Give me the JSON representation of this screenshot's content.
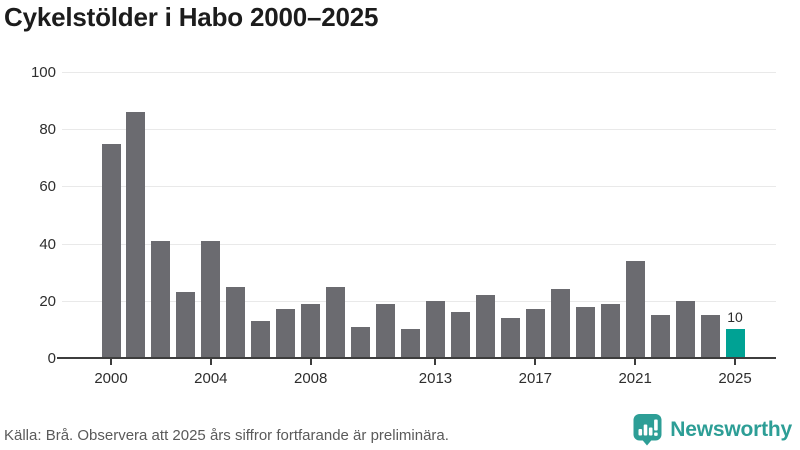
{
  "title": "Cykelstölder i Habo 2000–2025",
  "chart_data": {
    "type": "bar",
    "title": "Cykelstölder i Habo 2000–2025",
    "categories": [
      2000,
      2001,
      2002,
      2003,
      2004,
      2005,
      2006,
      2007,
      2008,
      2009,
      2010,
      2011,
      2012,
      2013,
      2014,
      2015,
      2016,
      2017,
      2018,
      2019,
      2020,
      2021,
      2022,
      2023,
      2024,
      2025
    ],
    "values": [
      75,
      86,
      41,
      23,
      41,
      25,
      13,
      17,
      19,
      25,
      11,
      19,
      10,
      20,
      16,
      22,
      14,
      17,
      24,
      18,
      19,
      34,
      15,
      20,
      15,
      10
    ],
    "bar_color": "#6b6b70",
    "highlight": {
      "index": 25,
      "category": 2025,
      "value": 10,
      "color": "#00a294",
      "label": "10"
    },
    "xlabel": "",
    "ylabel": "",
    "ylim": [
      0,
      100
    ],
    "yticks": [
      0,
      20,
      40,
      60,
      80,
      100
    ],
    "xticks": [
      2000,
      2004,
      2008,
      2013,
      2017,
      2021,
      2025
    ],
    "grid": true,
    "legend": "none"
  },
  "footer": {
    "source": "Källa: Brå. Observera att 2025 års siffror fortfarande är preliminära."
  },
  "branding": {
    "logo_text": "Newsworthy",
    "logo_icon": "newsworthy-speech-bubble-barchart-icon",
    "logo_color": "#2d9e96"
  },
  "colors": {
    "bar_default": "#6b6b70",
    "bar_highlight": "#00a294",
    "gridline": "#e9e9e9",
    "axis": "#3d3d3d",
    "text": "#2e2e2e",
    "source_text": "#5a5a5a"
  }
}
